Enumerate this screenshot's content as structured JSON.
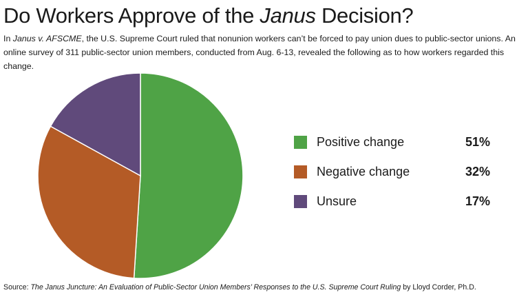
{
  "header": {
    "title_prefix": "Do Workers Approve of the ",
    "title_italic": "Janus",
    "title_suffix": " Decision?",
    "intro_case": "Janus v. AFSCME",
    "intro_line_start": "In ",
    "intro_text": ", the U.S. Supreme Court ruled that nonunion workers can’t be forced to pay union dues to public-sector unions. An online survey of 311 public-sector union members, conducted from Aug. 6-13, revealed the following as to how workers regarded this change."
  },
  "footer": {
    "source_label": "Source: ",
    "source_title": "The Janus Juncture: An Evaluation of Public-Sector Union Members’ Responses to the U.S. Supreme Court Ruling",
    "source_author": " by Lloyd Corder, Ph.D."
  },
  "chart_data": {
    "type": "pie",
    "title": "Do Workers Approve of the Janus Decision?",
    "legend_position": "right",
    "slices": [
      {
        "label": "Positive change",
        "value": 51,
        "display": "51%",
        "color": "#4fa346"
      },
      {
        "label": "Negative change",
        "value": 32,
        "display": "32%",
        "color": "#b45b26"
      },
      {
        "label": "Unsure",
        "value": 17,
        "display": "17%",
        "color": "#604a7b"
      }
    ]
  }
}
